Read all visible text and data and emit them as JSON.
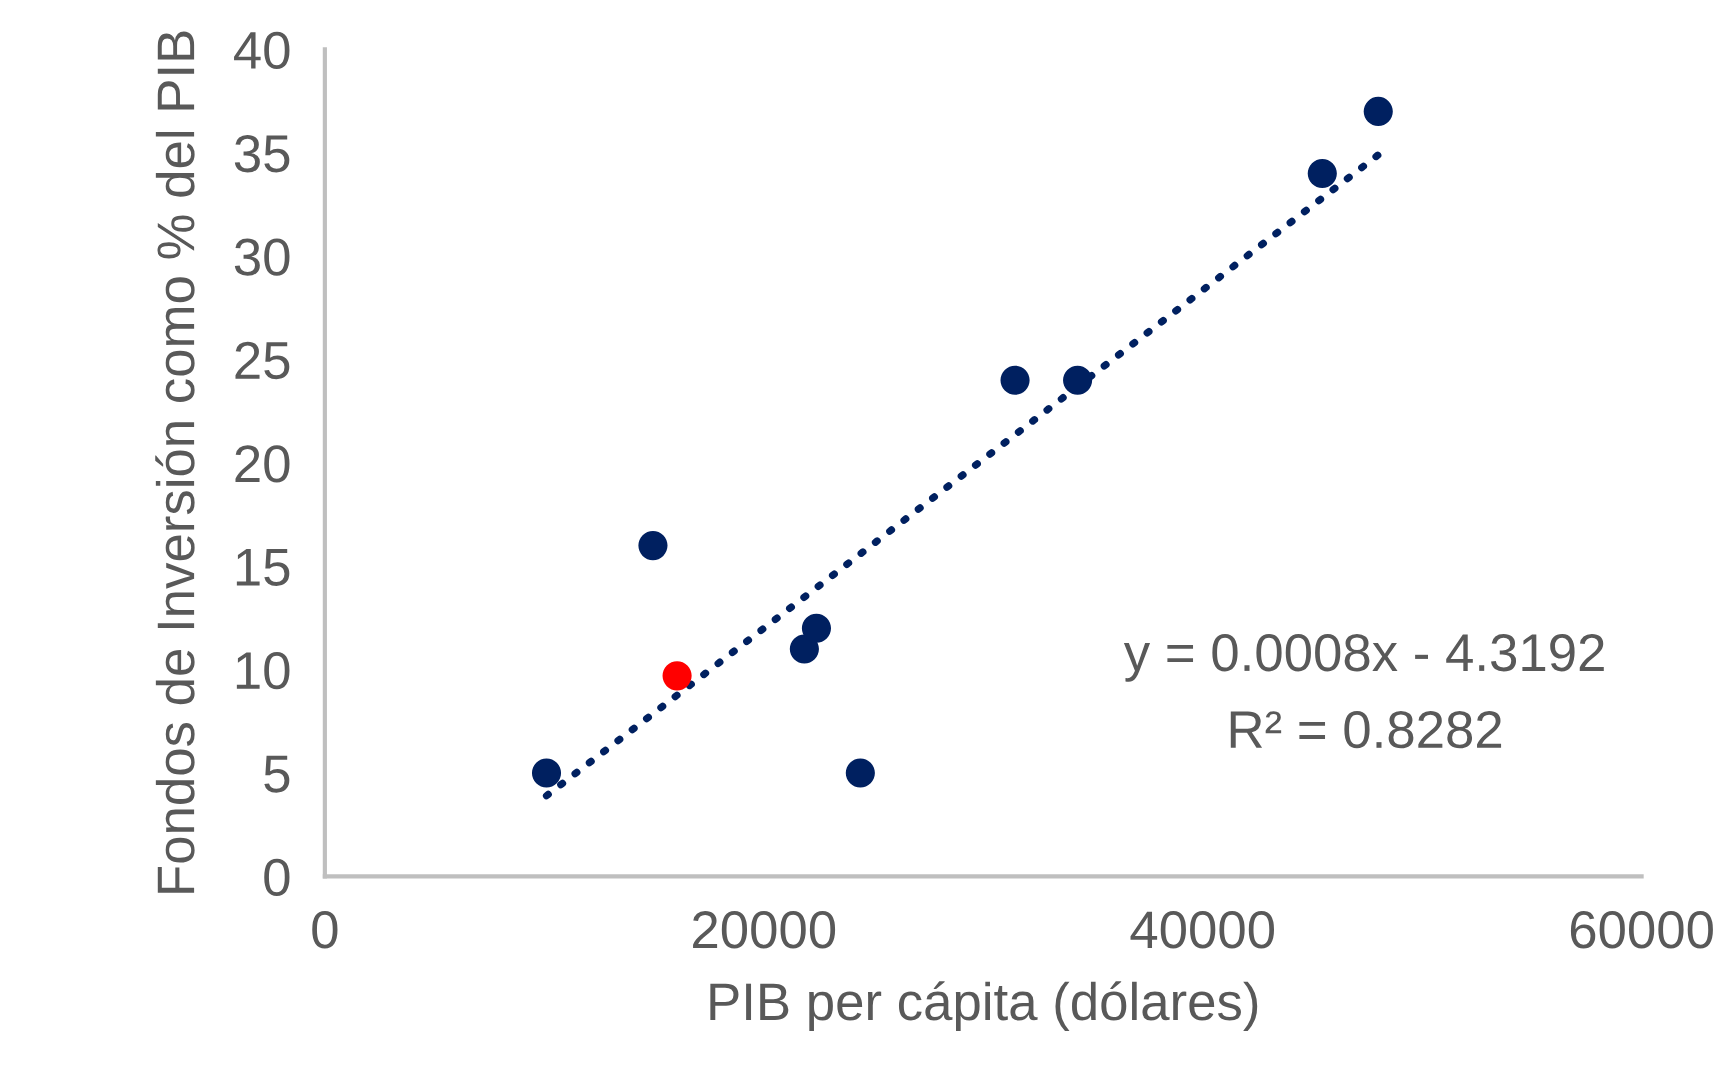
{
  "chart_data": {
    "type": "scatter",
    "xlabel": "PIB per cápita (dólares)",
    "ylabel": "Fondos de Inversión como % del PIB",
    "xlim": [
      0,
      60000
    ],
    "xticks": [
      0,
      20000,
      40000,
      60000
    ],
    "ylim": [
      0,
      40
    ],
    "yticks": [
      0,
      5,
      10,
      15,
      20,
      25,
      30,
      35,
      40
    ],
    "grid": false,
    "legend": false,
    "series": [
      {
        "color": "#002060",
        "x": [
          10100,
          14950,
          16050,
          21850,
          22400,
          24400,
          31450,
          34300,
          45450,
          48000
        ],
        "values": [
          5,
          16,
          9.7,
          11,
          12,
          5,
          24,
          24,
          34,
          37
        ],
        "colors": [
          "#002060",
          "#002060",
          "#ff0000",
          "#002060",
          "#002060",
          "#002060",
          "#002060",
          "#002060",
          "#002060",
          "#002060"
        ],
        "marker": "circle"
      },
      {
        "type": "line",
        "color": "#002060",
        "x": [
          10100,
          48000
        ],
        "values": [
          3.9,
          34.9
        ],
        "line_style": "dotted",
        "marker": "none"
      }
    ],
    "annotations": [
      "y = 0.0008x - 4.3192",
      "R² = 0.8282"
    ]
  }
}
